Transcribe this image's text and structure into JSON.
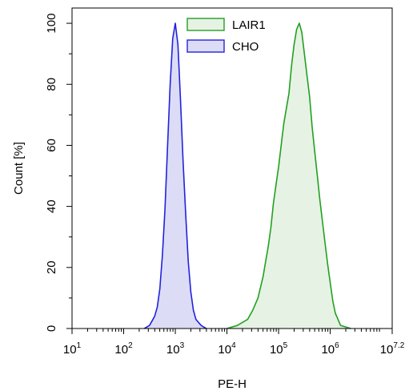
{
  "chart_data": {
    "type": "area",
    "title": "",
    "xlabel": "PE-H",
    "ylabel": "Count [%]",
    "x_scale": "log10",
    "xlim": [
      10,
      15848932
    ],
    "ylim": [
      0,
      105
    ],
    "x_ticks": [
      {
        "base": "10",
        "exp": "1",
        "value": 10
      },
      {
        "base": "10",
        "exp": "2",
        "value": 100
      },
      {
        "base": "10",
        "exp": "3",
        "value": 1000
      },
      {
        "base": "10",
        "exp": "4",
        "value": 10000
      },
      {
        "base": "10",
        "exp": "5",
        "value": 100000
      },
      {
        "base": "10",
        "exp": "6",
        "value": 1000000
      },
      {
        "base": "10",
        "exp": "7.2",
        "value": 15848932
      }
    ],
    "y_ticks": [
      "0",
      "20",
      "40",
      "60",
      "80",
      "100"
    ],
    "y_tick_values": [
      0,
      20,
      40,
      60,
      80,
      100
    ],
    "legend_position": "top-center",
    "series": [
      {
        "name": "LAIR1",
        "stroke": "#22a022",
        "fill": "#e6f2e3",
        "x": [
          10000,
          15849,
          25119,
          31623,
          39811,
          50119,
          56234,
          63096,
          70795,
          79433,
          89125,
          100000,
          112202,
          125893,
          141254,
          158489,
          177828,
          199526,
          223872,
          251189,
          281838,
          316228,
          354813,
          398107,
          446684,
          501187,
          562341,
          630957,
          707946,
          794328,
          891251,
          1000000,
          1122018,
          1258925,
          1412538,
          1584893,
          2511886
        ],
        "y": [
          0,
          1,
          3,
          6,
          10,
          17,
          22,
          27,
          33,
          41,
          47,
          53,
          60,
          67,
          72,
          77,
          86,
          93,
          98,
          100,
          97,
          90,
          83,
          76,
          66,
          58,
          50,
          42,
          35,
          28,
          21,
          15,
          9,
          5,
          3,
          1,
          0
        ]
      },
      {
        "name": "CHO",
        "stroke": "#2222dd",
        "fill": "#dcdcf6",
        "x": [
          251,
          316,
          398,
          447,
          501,
          562,
          631,
          708,
          794,
          891,
          1000,
          1122,
          1259,
          1413,
          1585,
          1778,
          1995,
          2239,
          2512,
          3162,
          3981
        ],
        "y": [
          0,
          1,
          4,
          7,
          13,
          24,
          39,
          60,
          80,
          95,
          100,
          93,
          75,
          55,
          38,
          22,
          12,
          6,
          3,
          1,
          0
        ]
      }
    ]
  }
}
